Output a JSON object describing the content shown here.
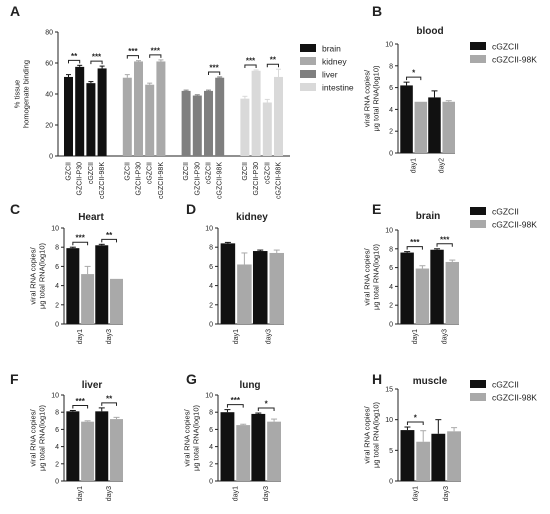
{
  "colors": {
    "black": "#111111",
    "brain": "#111111",
    "kidney": "#a9a9a9",
    "liver": "#7f7f7f",
    "intestine": "#d9d9d9",
    "cGZCII": "#111111",
    "cGZCII-98K": "#a9a9a9"
  },
  "chart_data": [
    {
      "panel": "A",
      "type": "bar",
      "title": "",
      "ylabel": "% tissue homogenate binding",
      "ylim": [
        0,
        80
      ],
      "yticks": [
        0,
        20,
        40,
        60,
        80
      ],
      "legend": [
        "brain",
        "kidney",
        "liver",
        "intestine"
      ],
      "legend_position": "right",
      "groups": [
        {
          "series": "brain",
          "categories": [
            "GZCII",
            "GZCII-P30",
            "cGZCII",
            "cGZCII-98K"
          ],
          "values": [
            51,
            57.5,
            47,
            56.5
          ],
          "errors": [
            1.5,
            1,
            1,
            1.5
          ],
          "significance": [
            {
              "from": 0,
              "to": 1,
              "text": "**"
            },
            {
              "from": 2,
              "to": 3,
              "text": "***"
            }
          ]
        },
        {
          "series": "kidney",
          "categories": [
            "GZCII",
            "GZCII-P30",
            "cGZCII",
            "cGZCII-98K"
          ],
          "values": [
            50.5,
            61,
            46,
            61
          ],
          "errors": [
            2,
            0.5,
            1,
            1
          ],
          "significance": [
            {
              "from": 0,
              "to": 1,
              "text": "***"
            },
            {
              "from": 2,
              "to": 3,
              "text": "***"
            }
          ]
        },
        {
          "series": "liver",
          "categories": [
            "GZCII",
            "GZCII-P30",
            "cGZCII",
            "cGZCII-98K"
          ],
          "values": [
            42,
            39,
            42,
            50.5
          ],
          "errors": [
            0.5,
            0.5,
            0.5,
            0.5
          ],
          "significance": [
            {
              "from": 2,
              "to": 3,
              "text": "***"
            }
          ]
        },
        {
          "series": "intestine",
          "categories": [
            "GZCII",
            "GZCII-P30",
            "cGZCII",
            "cGZCII-98K"
          ],
          "values": [
            37,
            55,
            34.5,
            51
          ],
          "errors": [
            1.5,
            0.5,
            2,
            5
          ],
          "significance": [
            {
              "from": 0,
              "to": 1,
              "text": "***"
            },
            {
              "from": 2,
              "to": 3,
              "text": "**"
            }
          ]
        }
      ]
    },
    {
      "panel": "B",
      "type": "bar",
      "title": "blood",
      "ylabel": "viral RNA copies/ μg total RNA(log10)",
      "ylim": [
        0,
        10
      ],
      "yticks": [
        0,
        2,
        4,
        6,
        8,
        10
      ],
      "categories": [
        "day1",
        "day2"
      ],
      "series": [
        {
          "name": "cGZCII",
          "values": [
            6.2,
            5.1
          ],
          "errors": [
            0.3,
            0.6
          ]
        },
        {
          "name": "cGZCII-98K",
          "values": [
            4.7,
            4.7
          ],
          "errors": [
            0,
            0.1
          ]
        }
      ],
      "significance": [
        {
          "category": 0,
          "text": "*"
        }
      ],
      "legend": [
        "cGZCII",
        "cGZCII-98K"
      ]
    },
    {
      "panel": "C",
      "type": "bar",
      "title": "Heart",
      "ylabel": "viral RNA copies/ μg total RNA(log10)",
      "ylim": [
        0,
        10
      ],
      "yticks": [
        0,
        2,
        4,
        6,
        8,
        10
      ],
      "categories": [
        "day1",
        "day3"
      ],
      "series": [
        {
          "name": "cGZCII",
          "values": [
            7.9,
            8.2
          ],
          "errors": [
            0.1,
            0.1
          ]
        },
        {
          "name": "cGZCII-98K",
          "values": [
            5.2,
            4.7
          ],
          "errors": [
            0.8,
            0
          ]
        }
      ],
      "significance": [
        {
          "category": 0,
          "text": "***"
        },
        {
          "category": 1,
          "text": "**"
        }
      ]
    },
    {
      "panel": "D",
      "type": "bar",
      "title": "kidney",
      "ylabel": "",
      "ylim": [
        0,
        10
      ],
      "yticks": [
        0,
        2,
        4,
        6,
        8,
        10
      ],
      "categories": [
        "day1",
        "day3"
      ],
      "series": [
        {
          "name": "cGZCII",
          "values": [
            8.4,
            7.6
          ],
          "errors": [
            0.1,
            0.1
          ]
        },
        {
          "name": "cGZCII-98K",
          "values": [
            6.2,
            7.4
          ],
          "errors": [
            1.2,
            0.3
          ]
        }
      ],
      "significance": []
    },
    {
      "panel": "E",
      "type": "bar",
      "title": "brain",
      "ylabel": "viral RNA copies/ μg total RNA(log10)",
      "ylim": [
        0,
        10
      ],
      "yticks": [
        0,
        2,
        4,
        6,
        8,
        10
      ],
      "categories": [
        "day1",
        "day3"
      ],
      "series": [
        {
          "name": "cGZCII",
          "values": [
            7.6,
            7.9
          ],
          "errors": [
            0.1,
            0.1
          ]
        },
        {
          "name": "cGZCII-98K",
          "values": [
            5.9,
            6.6
          ],
          "errors": [
            0.3,
            0.2
          ]
        }
      ],
      "significance": [
        {
          "category": 0,
          "text": "***"
        },
        {
          "category": 1,
          "text": "***"
        }
      ],
      "legend": [
        "cGZCII",
        "cGZCII-98K"
      ]
    },
    {
      "panel": "F",
      "type": "bar",
      "title": "liver",
      "ylabel": "viral RNA copies/ μg total RNA(log10)",
      "ylim": [
        0,
        10
      ],
      "yticks": [
        0,
        2,
        4,
        6,
        8,
        10
      ],
      "categories": [
        "day1",
        "day3"
      ],
      "series": [
        {
          "name": "cGZCII",
          "values": [
            8.1,
            8.1
          ],
          "errors": [
            0.1,
            0.4
          ]
        },
        {
          "name": "cGZCII-98K",
          "values": [
            6.9,
            7.2
          ],
          "errors": [
            0.1,
            0.2
          ]
        }
      ],
      "significance": [
        {
          "category": 0,
          "text": "***"
        },
        {
          "category": 1,
          "text": "**"
        }
      ]
    },
    {
      "panel": "G",
      "type": "bar",
      "title": "lung",
      "ylabel": "viral RNA copies/ μg total RNA(log10)",
      "ylim": [
        0,
        10
      ],
      "yticks": [
        0,
        2,
        4,
        6,
        8,
        10
      ],
      "categories": [
        "day1",
        "day3"
      ],
      "series": [
        {
          "name": "cGZCII",
          "values": [
            8.0,
            7.8
          ],
          "errors": [
            0.3,
            0.1
          ]
        },
        {
          "name": "cGZCII-98K",
          "values": [
            6.5,
            6.9
          ],
          "errors": [
            0.1,
            0.3
          ]
        }
      ],
      "significance": [
        {
          "category": 0,
          "text": "***"
        },
        {
          "category": 1,
          "text": "*"
        }
      ]
    },
    {
      "panel": "H",
      "type": "bar",
      "title": "muscle",
      "ylabel": "viral RNA copies/ μg total RNA(log10)",
      "ylim": [
        0,
        15
      ],
      "yticks": [
        0,
        5,
        10,
        15
      ],
      "categories": [
        "day1",
        "day3"
      ],
      "series": [
        {
          "name": "cGZCII",
          "values": [
            8.3,
            7.7
          ],
          "errors": [
            0.5,
            2.3
          ]
        },
        {
          "name": "cGZCII-98K",
          "values": [
            6.4,
            8.1
          ],
          "errors": [
            1.8,
            0.6
          ]
        }
      ],
      "significance": [
        {
          "category": 0,
          "text": "*"
        }
      ],
      "legend": [
        "cGZCII",
        "cGZCII-98K"
      ]
    }
  ]
}
